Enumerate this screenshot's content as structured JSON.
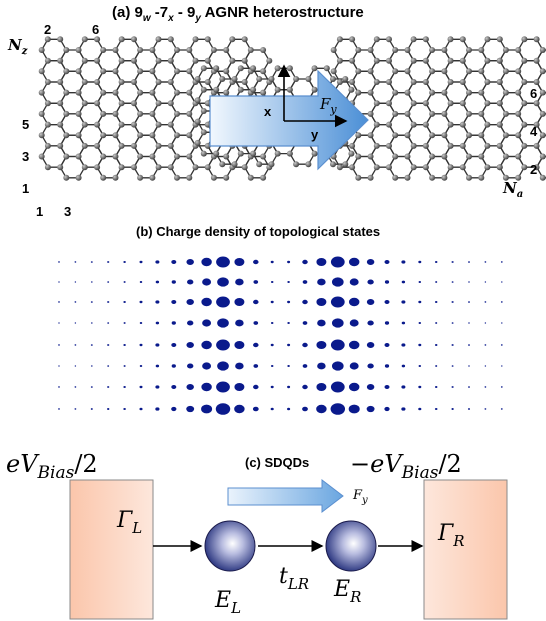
{
  "panel_a": {
    "title": "(a) 9",
    "title_sub_w": "w",
    "title_mid1": " -7",
    "title_sub_x": "x",
    "title_mid2": " - 9",
    "title_sub_y": "y",
    "title_tail": " AGNR heterostructure",
    "nz_label": "N",
    "nz_sub": "z",
    "na_label": "N",
    "na_sub": "a",
    "left_indices_top": [
      "2",
      "6"
    ],
    "left_indices_side": [
      "5",
      "3",
      "1"
    ],
    "left_indices_bottom": [
      "1",
      "3"
    ],
    "right_indices_side": [
      "6",
      "4",
      "2"
    ],
    "axis_x": "x",
    "axis_y": "y",
    "field_label": "F",
    "field_sub": "y"
  },
  "panel_b": {
    "title": "(b) Charge density of topological states"
  },
  "panel_c": {
    "title": "(c) SDQDs",
    "left_bias": "eV",
    "left_bias_sub": "Bias",
    "left_bias_tail": "/2",
    "right_bias": "−eV",
    "right_bias_sub": "Bias",
    "right_bias_tail": "/2",
    "gamma_l": "Γ",
    "gamma_l_sub": "L",
    "gamma_r": "Γ",
    "gamma_r_sub": "R",
    "e_l": "E",
    "e_l_sub": "L",
    "e_r": "E",
    "e_r_sub": "R",
    "t_lr": "t",
    "t_lr_sub": "LR",
    "field_label": "F",
    "field_sub": "y"
  },
  "colors": {
    "atom": "#4a4a4a",
    "bond": "#333333",
    "charge": "#0a1a8c",
    "arrow_fill_light": "#eaf3fc",
    "arrow_fill_dark": "#3f86cf",
    "electrode_fill": "#f9b99a",
    "dot_fill": "#2d3d8f"
  }
}
